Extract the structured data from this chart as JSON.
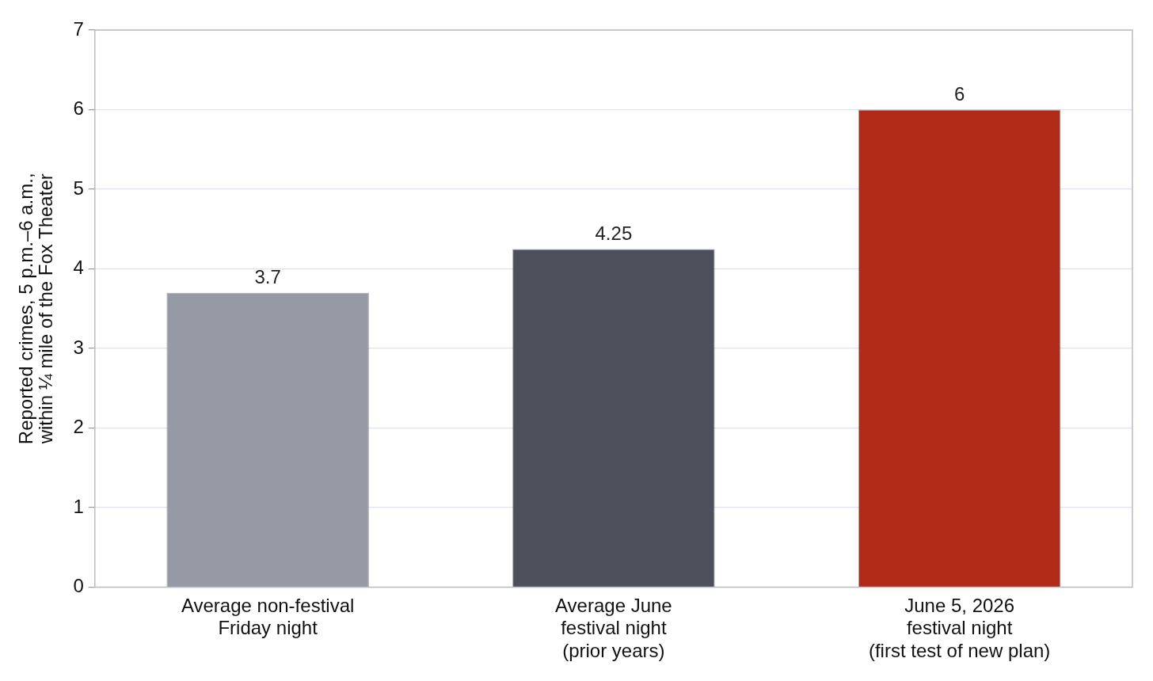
{
  "chart_data": {
    "type": "bar",
    "ylabel": "Reported crimes, 5 p.m.–6 a.m.,\nwithin ¼ mile of the Fox Theater",
    "categories": [
      "Average non-festival\nFriday night",
      "Average June\nfestival night\n(prior years)",
      "June 5, 2026\nfestival night\n(first test of new plan)"
    ],
    "values": [
      3.7,
      4.25,
      6
    ],
    "colors": [
      "#959aa5",
      "#4d505b",
      "#b02a17"
    ],
    "ylim": [
      0,
      7
    ],
    "yticks": [
      0,
      1,
      2,
      3,
      4,
      5,
      6,
      7
    ],
    "grid": "y",
    "legend": false,
    "data_labels": true
  }
}
